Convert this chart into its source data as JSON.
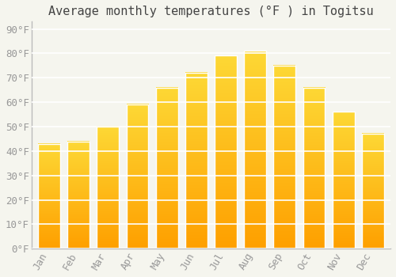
{
  "title": "Average monthly temperatures (°F ) in Togitsu",
  "months": [
    "Jan",
    "Feb",
    "Mar",
    "Apr",
    "May",
    "Jun",
    "Jul",
    "Aug",
    "Sep",
    "Oct",
    "Nov",
    "Dec"
  ],
  "values": [
    43,
    44,
    50,
    59,
    66,
    72,
    79,
    81,
    75,
    66,
    56,
    47
  ],
  "bar_color_top": "#FDD835",
  "bar_color_bottom": "#FFA000",
  "bar_edge_color": "#FFFFFF",
  "background_color": "#F5F5EE",
  "plot_bg_color": "#F5F5EE",
  "grid_color": "#FFFFFF",
  "ylim": [
    0,
    93
  ],
  "yticks": [
    0,
    10,
    20,
    30,
    40,
    50,
    60,
    70,
    80,
    90
  ],
  "title_fontsize": 11,
  "tick_fontsize": 9,
  "tick_color": "#999999",
  "title_color": "#444444"
}
